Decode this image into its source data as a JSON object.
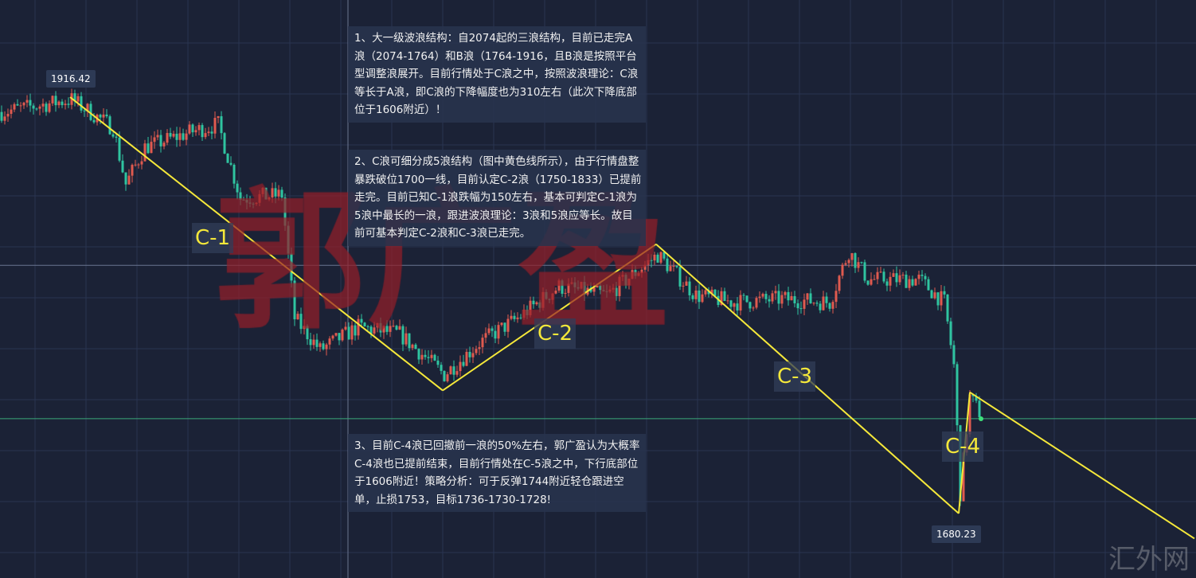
{
  "chart_data": {
    "type": "candlestick",
    "title": "",
    "xlabel": "",
    "ylabel": "",
    "ylim": [
      1660,
      1971
    ],
    "grid": true,
    "colors": {
      "up": "#e05a4f",
      "down": "#2fc4a0",
      "wave_line": "#f5e83a",
      "background": "#1b2236",
      "grid": "#2a3450",
      "hline_gray": "#6b7590",
      "hline_green": "#3aa87a"
    },
    "approx_close_path": [
      [
        0,
        1908
      ],
      [
        22,
        1915
      ],
      [
        35,
        1899
      ],
      [
        39,
        1867
      ],
      [
        45,
        1888
      ],
      [
        60,
        1897
      ],
      [
        68,
        1901
      ],
      [
        75,
        1859
      ],
      [
        88,
        1861
      ],
      [
        92,
        1791
      ],
      [
        100,
        1773
      ],
      [
        112,
        1786
      ],
      [
        125,
        1782
      ],
      [
        139,
        1759
      ],
      [
        150,
        1777
      ],
      [
        162,
        1791
      ],
      [
        175,
        1809
      ],
      [
        190,
        1804
      ],
      [
        206,
        1827
      ],
      [
        218,
        1804
      ],
      [
        230,
        1800
      ],
      [
        245,
        1802
      ],
      [
        260,
        1800
      ],
      [
        266,
        1829
      ],
      [
        272,
        1813
      ],
      [
        288,
        1813
      ],
      [
        296,
        1800
      ],
      [
        299,
        1764
      ],
      [
        301,
        1692
      ],
      [
        304,
        1746
      ],
      [
        308,
        1735
      ]
    ],
    "wave_lines": [
      [
        22,
        1916.42
      ],
      [
        139,
        1750
      ],
      [
        206,
        1833
      ],
      [
        301,
        1680.23
      ],
      [
        304.5,
        1749
      ],
      [
        375,
        1666
      ]
    ],
    "horizontal_lines": [
      1821,
      1734
    ],
    "price_labels": [
      "1916.42",
      "1680.23"
    ],
    "wave_labels": [
      "C-1",
      "C-2",
      "C-3",
      "C-4"
    ]
  },
  "notes": [
    "1、大一级波浪结构：自2074起的三浪结构，目前已走完A浪（2074-1764）和B浪（1764-1916，且B浪是按照平台型调整浪展开。目前行情处于C浪之中，按照波浪理论：C浪等长于A浪，即C浪的下降幅度也为310左右（此次下降底部位于1606附近）！",
    "2、C浪可细分成5浪结构（图中黄色线所示），由于行情盘整暴跌破位1700一线，目前认定C-2浪（1750-1833）已提前走完。目前已知C-1浪跌幅为150左右，基本可判定C-1浪为5浪中最长的一浪，跟进波浪理论：3浪和5浪应等长。故目前可基本判定C-2浪和C-3浪已走完。",
    "3、目前C-4浪已回撤前一浪的50%左右，郭广盈认为大概率C-4浪也已提前结束，目前行情处在C-5浪之中，下行底部位于1606附近！策略分析：可于反弹1744附近轻仓跟进空单，止损1753，目标1736-1730-1728!"
  ],
  "watermark": "郭广盈",
  "site_watermark": "汇外网"
}
